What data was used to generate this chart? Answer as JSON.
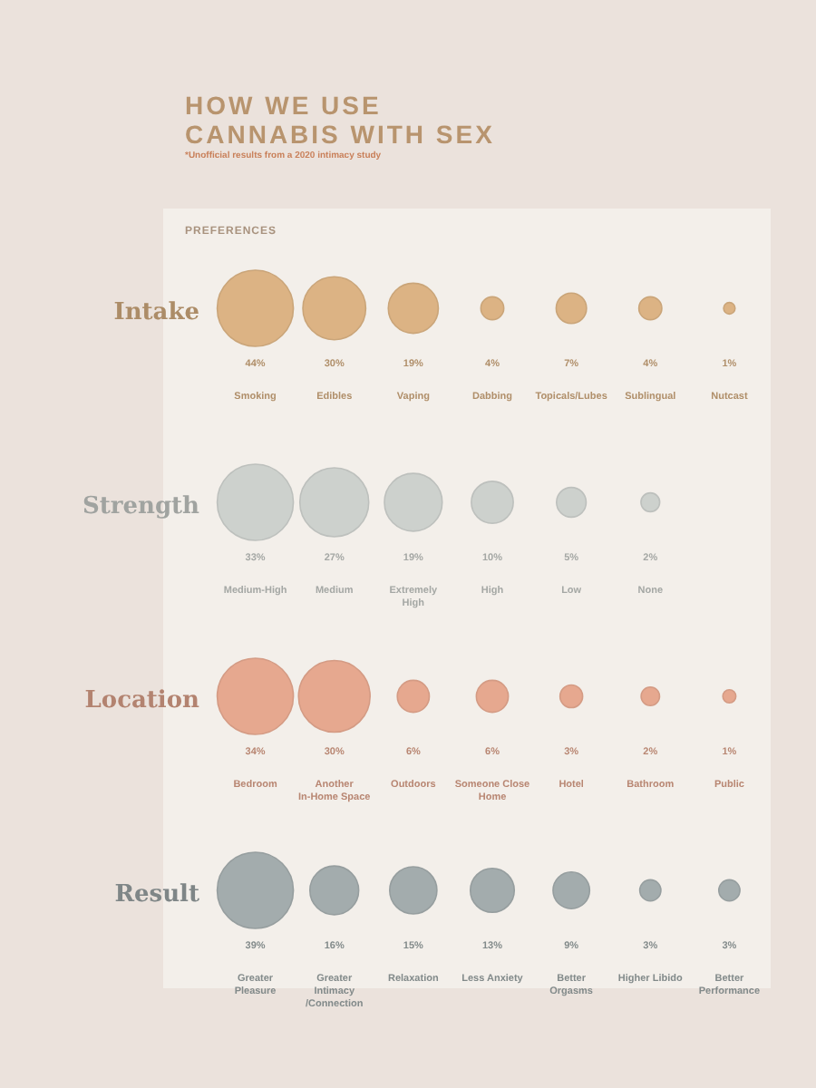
{
  "chart_data": [
    {
      "type": "other",
      "title": "HOW WE USE CANNABIS WITH SEX",
      "subtitle": "*Unofficial results from a 2020 intimacy study",
      "annotations": [
        "PREFERENCES"
      ],
      "xlabel": "Intake",
      "color": "#dcb384",
      "categories": [
        "Smoking",
        "Edibles",
        "Vaping",
        "Dabbing",
        "Topicals/Lubes",
        "Sublingual",
        "Nutcast"
      ],
      "values": [
        44,
        30,
        19,
        4,
        7,
        4,
        1
      ],
      "value_labels": [
        "44%",
        "30%",
        "19%",
        "4%",
        "7%",
        "4%",
        "1%"
      ]
    },
    {
      "type": "other",
      "xlabel": "Strength",
      "color": "#cdd1cd",
      "categories": [
        "Medium-High",
        "Medium",
        "Extremely High",
        "High",
        "Low",
        "None"
      ],
      "values": [
        33,
        27,
        19,
        10,
        5,
        2
      ],
      "value_labels": [
        "33%",
        "27%",
        "19%",
        "10%",
        "5%",
        "2%"
      ]
    },
    {
      "type": "other",
      "xlabel": "Location",
      "color": "#e6a88f",
      "categories": [
        "Bedroom",
        "Another In-Home Space",
        "Outdoors",
        "Someone Close Home",
        "Hotel",
        "Bathroom",
        "Public"
      ],
      "values": [
        34,
        30,
        6,
        6,
        3,
        2,
        1
      ],
      "value_labels": [
        "34%",
        "30%",
        "6%",
        "6%",
        "3%",
        "2%",
        "1%"
      ]
    },
    {
      "type": "other",
      "xlabel": "Result",
      "color": "#a3acad",
      "categories": [
        "Greater Pleasure",
        "Greater Intimacy /Connection",
        "Relaxation",
        "Less Anxiety",
        "Better Orgasms",
        "Higher Libido",
        "Better Performance"
      ],
      "values": [
        39,
        16,
        15,
        13,
        9,
        3,
        3
      ],
      "value_labels": [
        "39%",
        "16%",
        "15%",
        "13%",
        "9%",
        "3%",
        "3%"
      ]
    }
  ]
}
